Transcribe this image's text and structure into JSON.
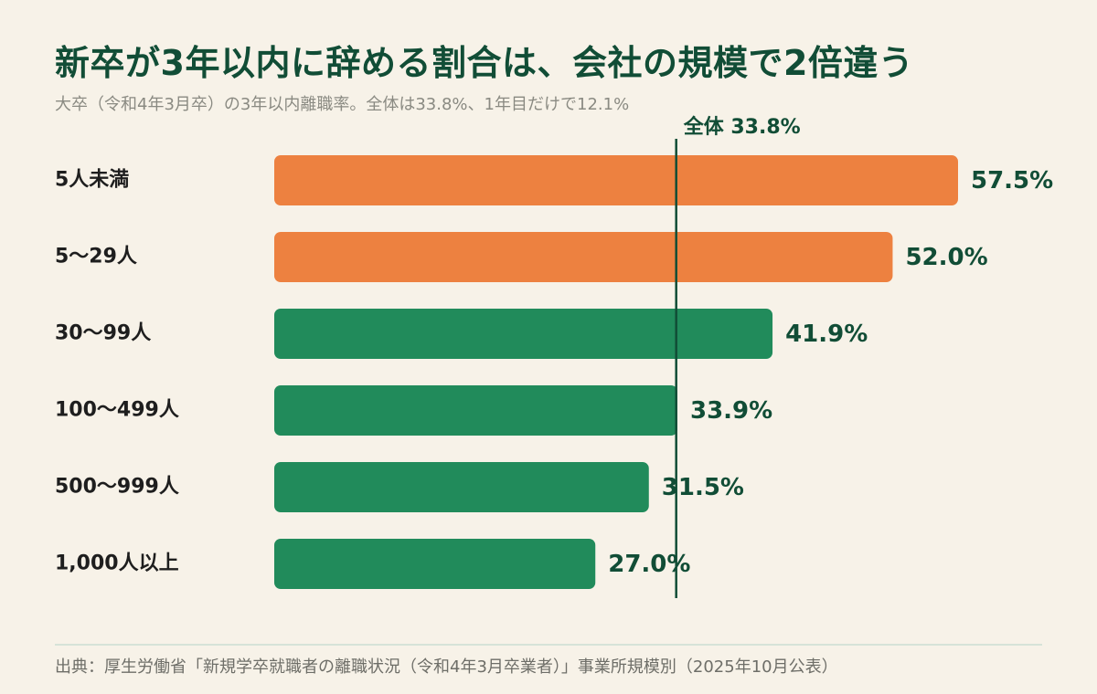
{
  "header": {
    "title": "新卒が3年以内に辞める割合は、会社の規模で2倍違う",
    "subtitle": "大卒（令和4年3月卒）の3年以内離職率。全体は33.8%、1年目だけで12.1%"
  },
  "chart_data": {
    "type": "bar",
    "orientation": "horizontal",
    "categories": [
      "5人未満",
      "5〜29人",
      "30〜99人",
      "100〜499人",
      "500〜999人",
      "1,000人以上"
    ],
    "values": [
      57.5,
      52.0,
      41.9,
      33.9,
      31.5,
      27.0
    ],
    "value_labels": [
      "57.5%",
      "52.0%",
      "41.9%",
      "33.9%",
      "31.5%",
      "27.0%"
    ],
    "xlim": [
      0,
      57.5
    ],
    "reference_line": {
      "value": 33.8,
      "label": "全体 33.8%"
    },
    "bar_colors": [
      "#ed8140",
      "#ed8140",
      "#218b5b",
      "#218b5b",
      "#218b5b",
      "#218b5b"
    ],
    "colors": {
      "highlight": "#ed8140",
      "normal": "#218b5b",
      "reference_line": "#114d36"
    },
    "grid": false,
    "legend": "none"
  },
  "footer": {
    "source": "出典：厚生労働省「新規学卒就職者の離職状況（令和4年3月卒業者）」事業所規模別（2025年10月公表）"
  }
}
